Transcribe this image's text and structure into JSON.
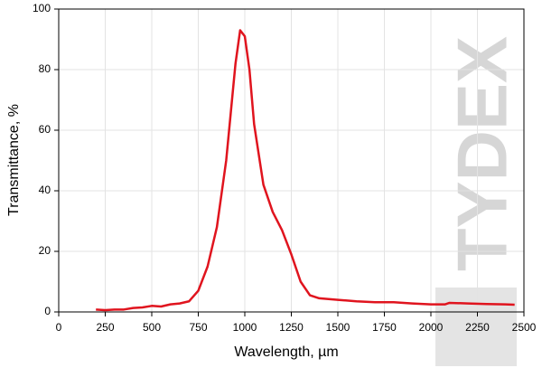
{
  "chart_data": {
    "type": "line",
    "x_label": "Wavelength, µm",
    "y_label": "Transmittance, %",
    "watermark": "TYDEX",
    "x": [
      200,
      250,
      300,
      350,
      400,
      450,
      500,
      550,
      600,
      650,
      700,
      750,
      800,
      850,
      900,
      925,
      950,
      975,
      1000,
      1025,
      1050,
      1100,
      1150,
      1200,
      1250,
      1300,
      1350,
      1400,
      1500,
      1600,
      1700,
      1800,
      1900,
      2000,
      2075,
      2100,
      2200,
      2300,
      2400,
      2450
    ],
    "series": [
      {
        "name": "Transmittance",
        "color": "#e0141e",
        "values": [
          0.8,
          0.6,
          0.8,
          0.8,
          1.3,
          1.5,
          2,
          1.8,
          2.5,
          2.8,
          3.5,
          7,
          15,
          28,
          50,
          66,
          82,
          93,
          91,
          80,
          62,
          42,
          33,
          27,
          19,
          10,
          5.5,
          4.5,
          4,
          3.5,
          3.2,
          3.2,
          2.8,
          2.5,
          2.5,
          3,
          2.8,
          2.6,
          2.5,
          2.4
        ]
      }
    ],
    "xlim": [
      0,
      2500
    ],
    "xticks": [
      0,
      250,
      500,
      750,
      1000,
      1250,
      1500,
      1750,
      2000,
      2250,
      2500
    ],
    "ylim": [
      0,
      100
    ],
    "yticks": [
      0,
      20,
      40,
      60,
      80,
      100
    ],
    "grid": true
  }
}
